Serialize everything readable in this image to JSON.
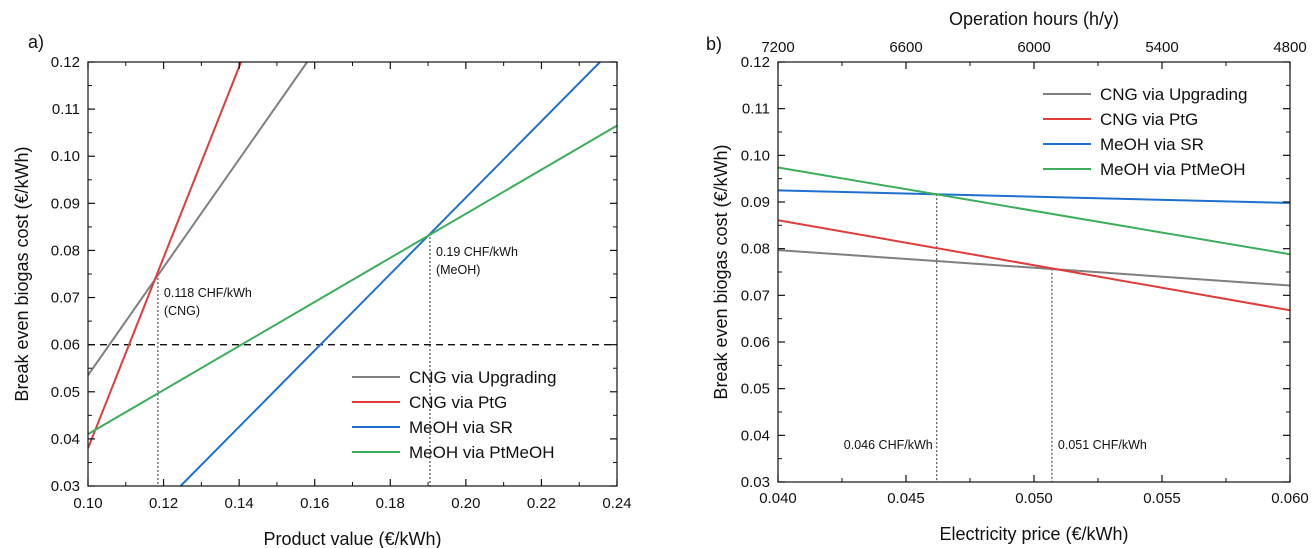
{
  "chart_data": [
    {
      "panel_label": "a)",
      "type": "line",
      "xlabel": "Product value (€/kWh)",
      "ylabel": "Break even biogas cost (€/kWh)",
      "xlim": [
        0.1,
        0.24
      ],
      "ylim": [
        0.03,
        0.12
      ],
      "x_ticks": [
        "0.10",
        "0.12",
        "0.14",
        "0.16",
        "0.18",
        "0.20",
        "0.22",
        "0.24"
      ],
      "y_ticks": [
        "0.03",
        "0.04",
        "0.05",
        "0.06",
        "0.07",
        "0.08",
        "0.09",
        "0.10",
        "0.11",
        "0.12"
      ],
      "legend_position": "bottom-right",
      "series": [
        {
          "name": "CNG via Upgrading",
          "color": "#7f7f7f",
          "x": [
            0.1,
            0.158
          ],
          "y": [
            0.0535,
            0.12
          ]
        },
        {
          "name": "CNG via PtG",
          "color": "#e03c3c",
          "x": [
            0.1,
            0.1405
          ],
          "y": [
            0.038,
            0.12
          ]
        },
        {
          "name": "MeOH via SR",
          "color": "#1f6fd0",
          "x": [
            0.1245,
            0.2355
          ],
          "y": [
            0.03,
            0.12
          ]
        },
        {
          "name": "MeOH via PtMeOH",
          "color": "#3aae5a",
          "x": [
            0.1,
            0.24
          ],
          "y": [
            0.041,
            0.1065
          ]
        }
      ],
      "reference_line": {
        "y": 0.06,
        "style": "dashed"
      },
      "annotations": [
        {
          "x": 0.1185,
          "y": 0.075,
          "line1": "0.118 CHF/kWh",
          "line2": "(CNG)"
        },
        {
          "x": 0.1905,
          "y": 0.0837,
          "line1": "0.19 CHF/kWh",
          "line2": "(MeOH)"
        }
      ]
    },
    {
      "panel_label": "b)",
      "type": "line",
      "xlabel": "Electricity price (€/kWh)",
      "ylabel": "Break even biogas cost (€/kWh)",
      "top_xlabel": "Operation hours (h/y)",
      "xlim": [
        0.04,
        0.06
      ],
      "ylim": [
        0.03,
        0.12
      ],
      "x_ticks": [
        "0.040",
        "0.045",
        "0.050",
        "0.055",
        "0.060"
      ],
      "top_ticks": [
        "7200",
        "6600",
        "6000",
        "5400",
        "4800"
      ],
      "y_ticks": [
        "0.03",
        "0.04",
        "0.05",
        "0.06",
        "0.07",
        "0.08",
        "0.09",
        "0.10",
        "0.11",
        "0.12"
      ],
      "legend_position": "top-right",
      "series": [
        {
          "name": "CNG via Upgrading",
          "color": "#7f7f7f",
          "x": [
            0.04,
            0.06
          ],
          "y": [
            0.0797,
            0.0721
          ]
        },
        {
          "name": "CNG via PtG",
          "color": "#e03c3c",
          "x": [
            0.04,
            0.06
          ],
          "y": [
            0.0861,
            0.0668
          ]
        },
        {
          "name": "MeOH via SR",
          "color": "#1f6fd0",
          "x": [
            0.04,
            0.06
          ],
          "y": [
            0.0925,
            0.0898
          ]
        },
        {
          "name": "MeOH via PtMeOH",
          "color": "#3aae5a",
          "x": [
            0.04,
            0.06
          ],
          "y": [
            0.0974,
            0.0788
          ]
        }
      ],
      "annotations": [
        {
          "x": 0.0462,
          "y": 0.0917,
          "label": "0.046 CHF/kWh"
        },
        {
          "x": 0.0507,
          "y": 0.0757,
          "label": "0.051 CHF/kWh"
        }
      ]
    }
  ]
}
